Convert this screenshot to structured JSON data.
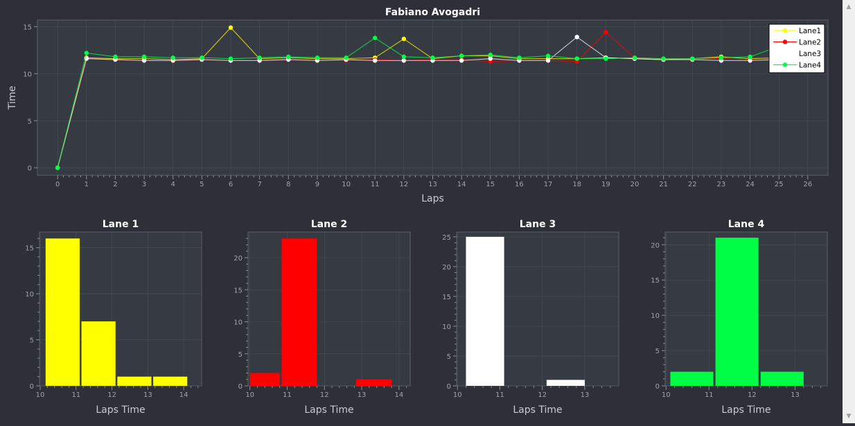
{
  "main_chart": {
    "title": "Fabiano Avogadri",
    "xlabel": "Laps",
    "ylabel": "Time",
    "xlim": [
      -0.7,
      26.7
    ],
    "ylim": [
      -0.8,
      15.7
    ],
    "xticks": [
      0,
      1,
      2,
      3,
      4,
      5,
      6,
      7,
      8,
      9,
      10,
      11,
      12,
      13,
      14,
      15,
      16,
      17,
      18,
      19,
      20,
      21,
      22,
      23,
      24,
      25,
      26
    ],
    "yticks": [
      0,
      5,
      10,
      15
    ],
    "legend_position": "top-right"
  },
  "chart_data": [
    {
      "type": "line",
      "title": "Fabiano Avogadri",
      "xlabel": "Laps",
      "ylabel": "Time",
      "x": [
        0,
        1,
        2,
        3,
        4,
        5,
        6,
        7,
        8,
        9,
        10,
        11,
        12,
        13,
        14,
        15,
        16,
        17,
        18,
        19,
        20,
        21,
        22,
        23,
        24,
        25
      ],
      "series": [
        {
          "name": "Lane1",
          "color": "#ffff00",
          "values": [
            0,
            11.7,
            11.6,
            11.6,
            11.5,
            11.6,
            14.9,
            11.6,
            11.7,
            11.6,
            11.6,
            11.7,
            13.7,
            11.6,
            11.9,
            11.9,
            11.6,
            11.6,
            11.6,
            11.7,
            11.6,
            11.5,
            11.6,
            11.8,
            11.6,
            11.7
          ]
        },
        {
          "name": "Lane2",
          "color": "#ff0000",
          "values": [
            0,
            11.6,
            11.5,
            11.4,
            11.4,
            11.5,
            11.4,
            11.4,
            11.5,
            11.4,
            11.4,
            11.5,
            11.4,
            11.5,
            11.5,
            11.3,
            11.4,
            11.4,
            11.3,
            14.4,
            11.7,
            11.6,
            11.6,
            11.6,
            11.5,
            11.6
          ]
        },
        {
          "name": "Lane3",
          "color": "#ffffff",
          "values": [
            0,
            11.6,
            11.5,
            11.4,
            11.4,
            11.5,
            11.4,
            11.4,
            11.5,
            11.4,
            11.5,
            11.4,
            11.4,
            11.4,
            11.4,
            11.6,
            11.4,
            11.4,
            13.9,
            11.7,
            11.6,
            11.5,
            11.5,
            11.4,
            11.4,
            11.5
          ]
        },
        {
          "name": "Lane4",
          "color": "#00ff44",
          "values": [
            0,
            12.2,
            11.8,
            11.8,
            11.7,
            11.7,
            11.6,
            11.7,
            11.8,
            11.7,
            11.7,
            13.8,
            11.8,
            11.7,
            11.9,
            12.0,
            11.7,
            11.9,
            11.6,
            11.6,
            11.7,
            11.6,
            11.6,
            11.7,
            11.8,
            12.9
          ]
        }
      ],
      "xlim": [
        -0.7,
        26.7
      ],
      "ylim": [
        -0.8,
        15.7
      ],
      "grid": true,
      "legend": "top-right"
    },
    {
      "type": "bar",
      "title": "Lane 1",
      "xlabel": "Laps Time",
      "color": "#ffff00",
      "bins": [
        [
          10.15,
          11.1
        ],
        [
          11.15,
          12.1
        ],
        [
          12.15,
          13.1
        ],
        [
          13.15,
          14.1
        ]
      ],
      "values": [
        16,
        7,
        1,
        1
      ],
      "xlim": [
        9.98,
        14.5
      ],
      "ylim": [
        0,
        16.7
      ],
      "xticks": [
        10,
        11,
        12,
        13,
        14
      ],
      "yticks": [
        0,
        5,
        10,
        15
      ],
      "grid": true
    },
    {
      "type": "bar",
      "title": "Lane 2",
      "xlabel": "Laps Time",
      "color": "#ff0000",
      "bins": [
        [
          10.0,
          10.8
        ],
        [
          10.85,
          11.8
        ],
        [
          11.85,
          12.8
        ],
        [
          12.85,
          13.8
        ]
      ],
      "values": [
        2,
        23,
        0,
        1
      ],
      "xlim": [
        9.95,
        14.3
      ],
      "ylim": [
        0,
        24.0
      ],
      "xticks": [
        10,
        11,
        12,
        13,
        14
      ],
      "yticks": [
        0,
        5,
        10,
        15,
        20
      ],
      "grid": true
    },
    {
      "type": "bar",
      "title": "Lane 3",
      "xlabel": "Laps Time",
      "color": "#ffffff",
      "bins": [
        [
          10.2,
          11.1
        ],
        [
          11.15,
          12.05
        ],
        [
          12.1,
          13.0
        ]
      ],
      "values": [
        25,
        0,
        1
      ],
      "xlim": [
        9.98,
        13.8
      ],
      "ylim": [
        0,
        25.8
      ],
      "xticks": [
        10,
        11,
        12,
        13
      ],
      "yticks": [
        0,
        5,
        10,
        15,
        20,
        25
      ],
      "grid": true
    },
    {
      "type": "bar",
      "title": "Lane 4",
      "xlabel": "Laps Time",
      "color": "#00ff44",
      "bins": [
        [
          10.1,
          11.1
        ],
        [
          11.15,
          12.15
        ],
        [
          12.2,
          13.2
        ]
      ],
      "values": [
        2,
        21,
        2
      ],
      "xlim": [
        9.98,
        13.75
      ],
      "ylim": [
        0,
        21.8
      ],
      "xticks": [
        10,
        11,
        12,
        13
      ],
      "yticks": [
        0,
        5,
        10,
        15,
        20
      ],
      "grid": true
    }
  ]
}
